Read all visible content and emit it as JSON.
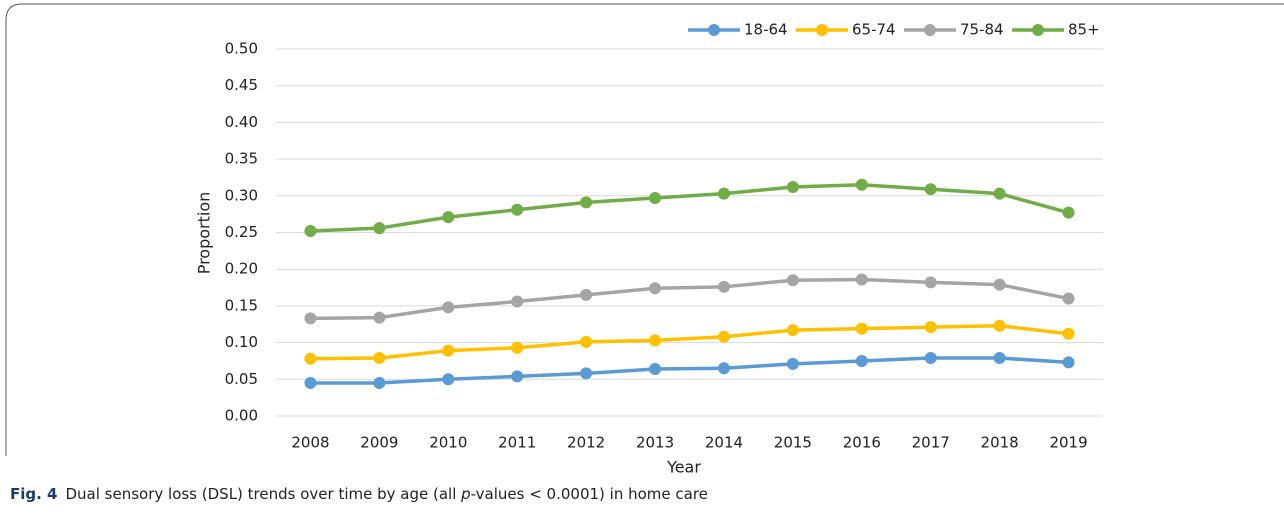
{
  "chart_data": {
    "type": "line",
    "x_label": "Year",
    "y_label": "Proportion",
    "categories": [
      "2008",
      "2009",
      "2010",
      "2011",
      "2012",
      "2013",
      "2014",
      "2015",
      "2016",
      "2017",
      "2018",
      "2019"
    ],
    "series": [
      {
        "name": "18-64",
        "color": "#5b9bd5",
        "values": [
          0.045,
          0.045,
          0.05,
          0.054,
          0.058,
          0.064,
          0.065,
          0.071,
          0.075,
          0.079,
          0.079,
          0.073
        ]
      },
      {
        "name": "65-74",
        "color": "#ffc000",
        "values": [
          0.078,
          0.079,
          0.089,
          0.093,
          0.101,
          0.103,
          0.108,
          0.117,
          0.119,
          0.121,
          0.123,
          0.112
        ]
      },
      {
        "name": "75-84",
        "color": "#a5a5a5",
        "values": [
          0.133,
          0.134,
          0.148,
          0.156,
          0.165,
          0.174,
          0.176,
          0.185,
          0.186,
          0.182,
          0.179,
          0.16
        ]
      },
      {
        "name": "85+",
        "color": "#70ad47",
        "values": [
          0.252,
          0.256,
          0.271,
          0.281,
          0.291,
          0.297,
          0.303,
          0.312,
          0.315,
          0.309,
          0.303,
          0.277
        ]
      }
    ],
    "ylim": [
      0,
      0.5
    ],
    "yticks": [
      {
        "value": 0,
        "label": "0.00"
      },
      0.05,
      {
        "value": 0.1,
        "label": "0.10"
      },
      0.15,
      {
        "value": 0.2,
        "label": "0.20"
      },
      0.25,
      {
        "value": 0.3,
        "label": "0.30"
      },
      0.35,
      {
        "value": 0.4,
        "label": "0.40"
      },
      0.45,
      {
        "value": 0.5,
        "label": "0.50"
      }
    ],
    "grid": true,
    "legend": "top",
    "caption": {
      "label": "Fig. 4",
      "text": [
        "Dual sensory loss (DSL) trends over time by age (all ",
        "p",
        "-values < 0.0001) in home care"
      ]
    }
  }
}
